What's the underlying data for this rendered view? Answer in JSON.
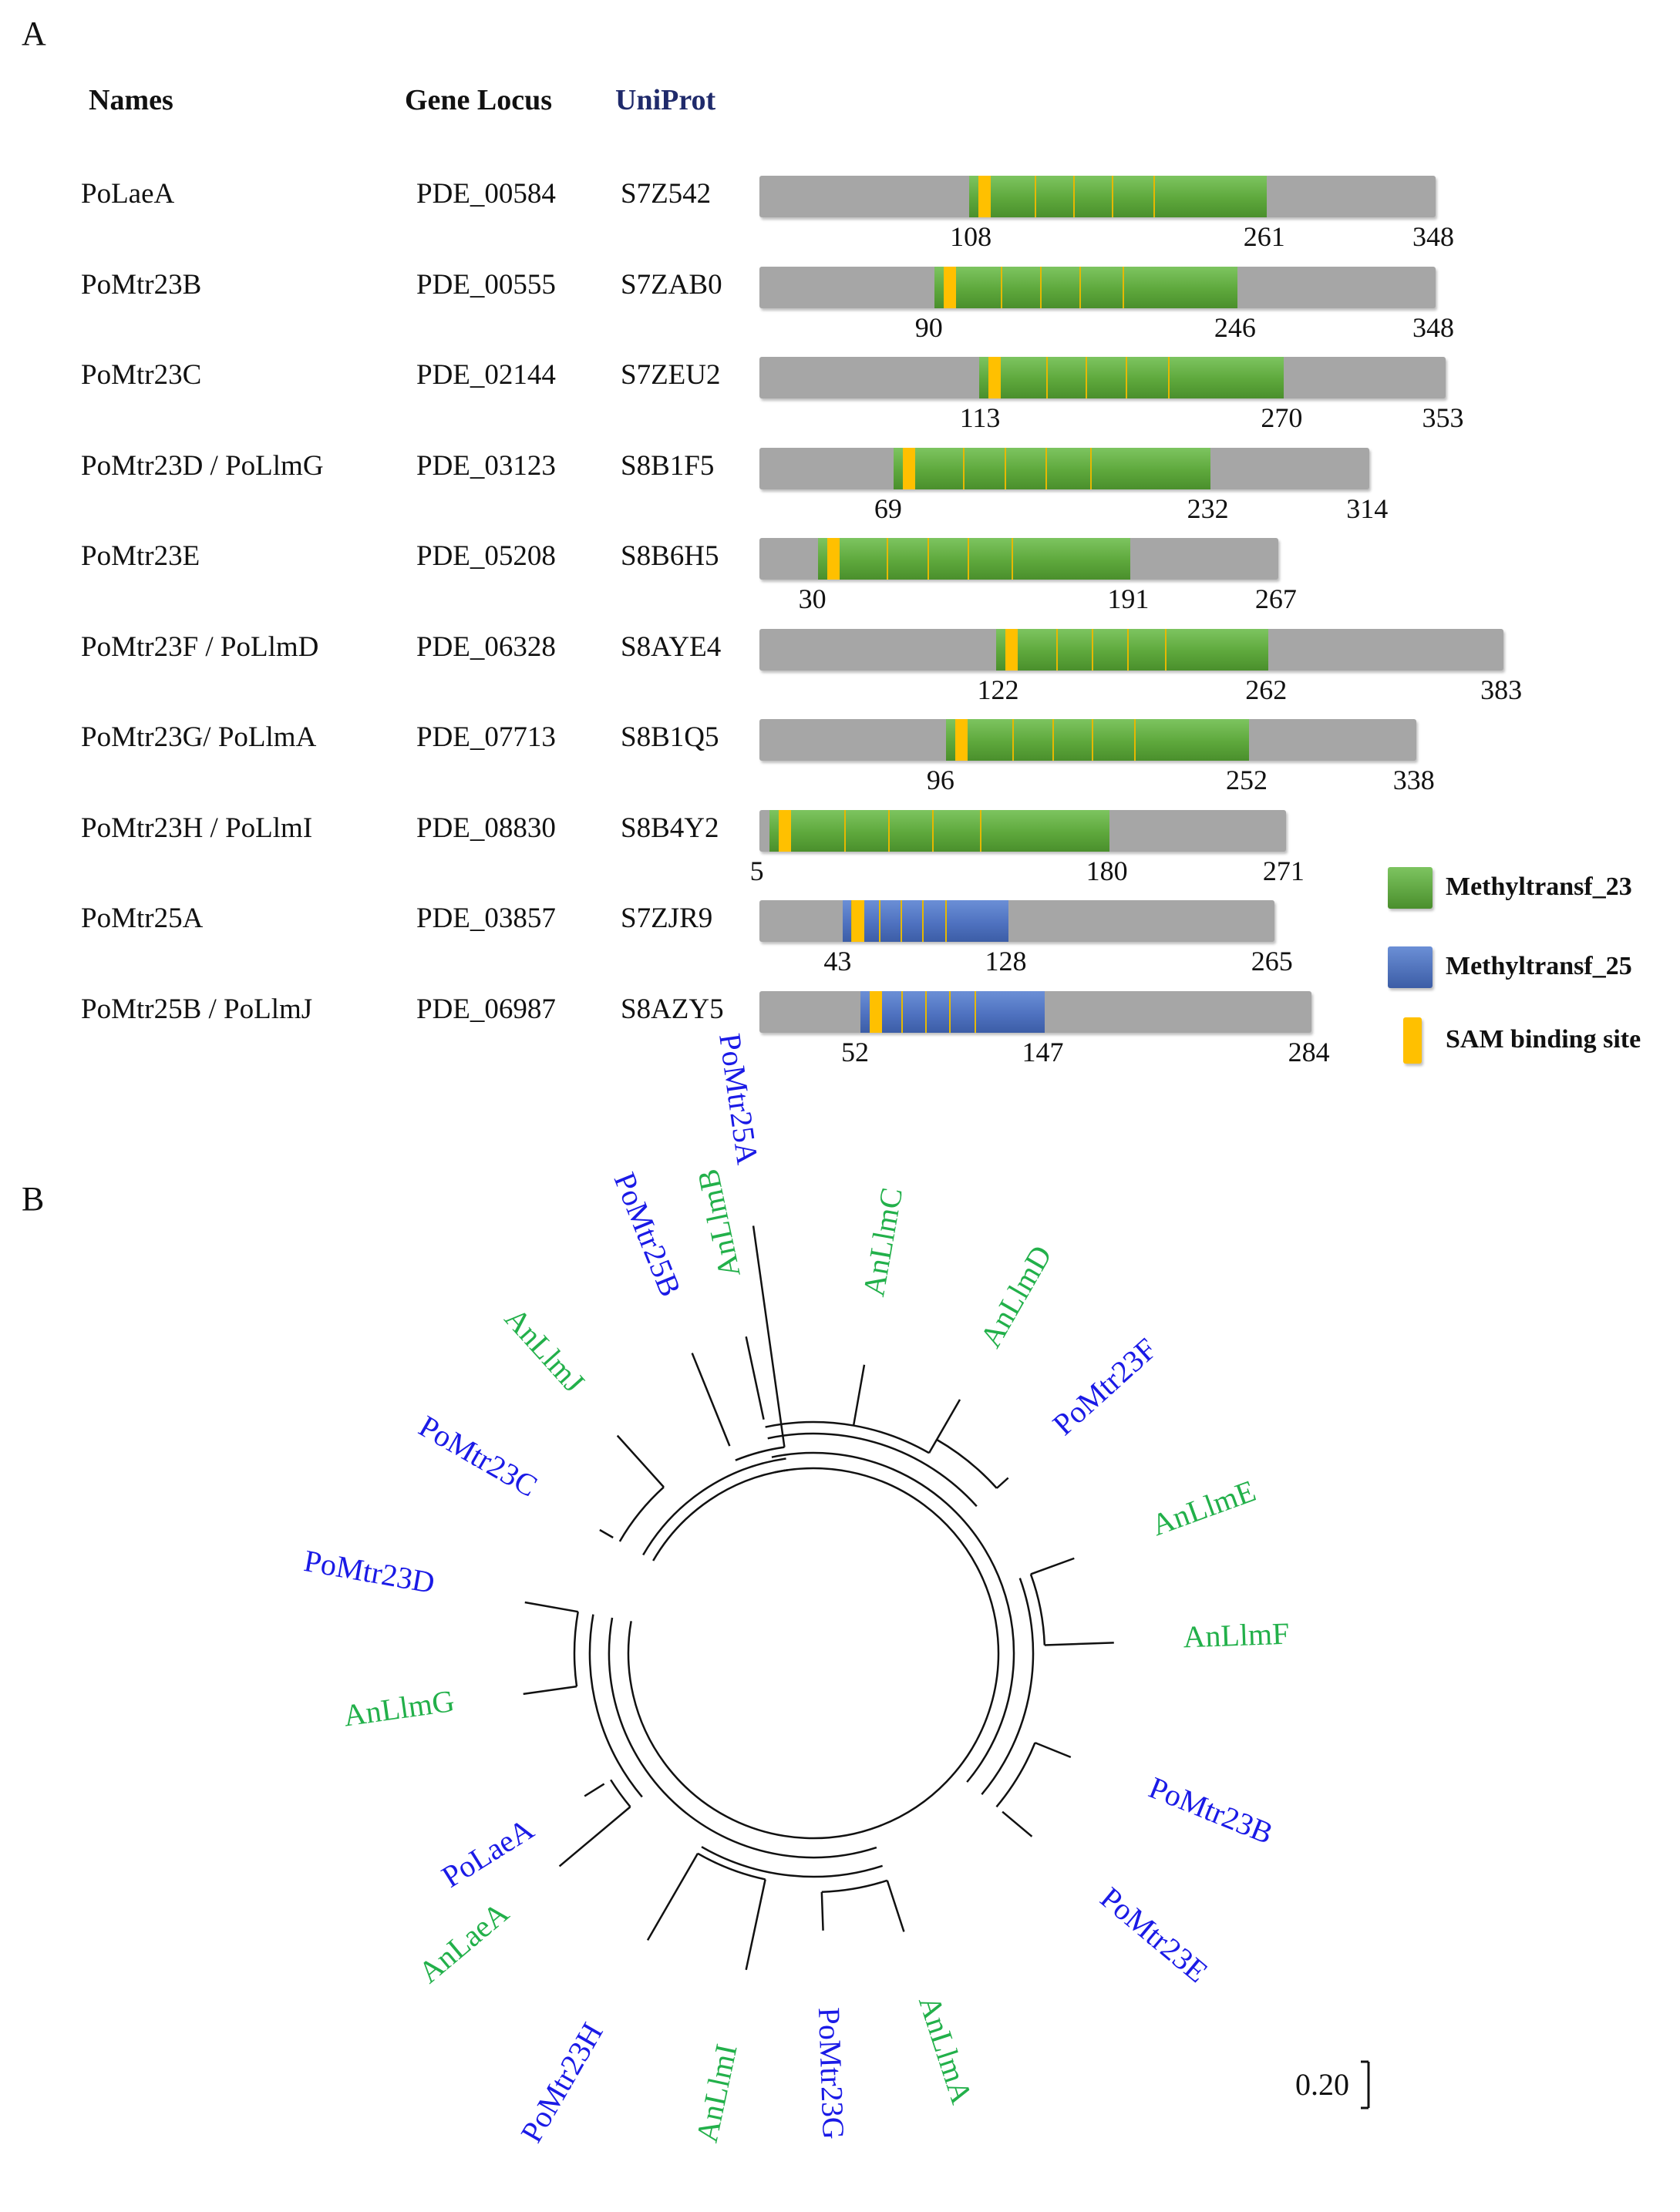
{
  "panel_a": {
    "letter": "A",
    "headers": {
      "names": "Names",
      "gene_locus": "Gene Locus",
      "uniprot": "UniProt"
    },
    "rows": [
      {
        "name": "PoLaeA",
        "locus": "PDE_00584",
        "uniprot": "S7Z542",
        "domain": "g",
        "start": 108,
        "end": 261,
        "length": 348
      },
      {
        "name": "PoMtr23B",
        "locus": "PDE_00555",
        "uniprot": "S7ZAB0",
        "domain": "g",
        "start": 90,
        "end": 246,
        "length": 348
      },
      {
        "name": "PoMtr23C",
        "locus": "PDE_02144",
        "uniprot": "S7ZEU2",
        "domain": "g",
        "start": 113,
        "end": 270,
        "length": 353
      },
      {
        "name": "PoMtr23D / PoLlmG",
        "locus": "PDE_03123",
        "uniprot": "S8B1F5",
        "domain": "g",
        "start": 69,
        "end": 232,
        "length": 314
      },
      {
        "name": "PoMtr23E",
        "locus": "PDE_05208",
        "uniprot": "S8B6H5",
        "domain": "g",
        "start": 30,
        "end": 191,
        "length": 267
      },
      {
        "name": "PoMtr23F / PoLlmD",
        "locus": "PDE_06328",
        "uniprot": "S8AYE4",
        "domain": "g",
        "start": 122,
        "end": 262,
        "length": 383
      },
      {
        "name": "PoMtr23G/ PoLlmA",
        "locus": "PDE_07713",
        "uniprot": "S8B1Q5",
        "domain": "g",
        "start": 96,
        "end": 252,
        "length": 338
      },
      {
        "name": "PoMtr23H / PoLlmI",
        "locus": "PDE_08830",
        "uniprot": "S8B4Y2",
        "domain": "g",
        "start": 5,
        "end": 180,
        "length": 271
      },
      {
        "name": "PoMtr25A",
        "locus": "PDE_03857",
        "uniprot": "S7ZJR9",
        "domain": "b",
        "start": 43,
        "end": 128,
        "length": 265
      },
      {
        "name": "PoMtr25B / PoLlmJ",
        "locus": "PDE_06987",
        "uniprot": "S8AZY5",
        "domain": "b",
        "start": 52,
        "end": 147,
        "length": 284
      }
    ],
    "legend": [
      {
        "label": "Methyltransf_23",
        "color": "#5ea83c"
      },
      {
        "label": "Methyltransf_25",
        "color": "#4f72c0"
      },
      {
        "label": "SAM binding site",
        "color": "#ffc000"
      }
    ]
  },
  "panel_b": {
    "letter": "B",
    "scale_label": "0.20",
    "colors": {
      "po": "#1a1ae6",
      "an": "#22b04a"
    },
    "leaves": [
      {
        "label": "AnLlmB",
        "group": "an"
      },
      {
        "label": "AnLlmC",
        "group": "an"
      },
      {
        "label": "AnLlmD",
        "group": "an"
      },
      {
        "label": "PoMtr23F",
        "group": "po"
      },
      {
        "label": "AnLlmE",
        "group": "an"
      },
      {
        "label": "AnLlmF",
        "group": "an"
      },
      {
        "label": "PoMtr23B",
        "group": "po"
      },
      {
        "label": "PoMtr23E",
        "group": "po"
      },
      {
        "label": "AnLlmA",
        "group": "an"
      },
      {
        "label": "PoMtr23G",
        "group": "po"
      },
      {
        "label": "AnLlmI",
        "group": "an"
      },
      {
        "label": "PoMtr23H",
        "group": "po"
      },
      {
        "label": "AnLaeA",
        "group": "an"
      },
      {
        "label": "PoLaeA",
        "group": "po"
      },
      {
        "label": "AnLlmG",
        "group": "an"
      },
      {
        "label": "PoMtr23D",
        "group": "po"
      },
      {
        "label": "PoMtr23C",
        "group": "po"
      },
      {
        "label": "AnLlmJ",
        "group": "an"
      },
      {
        "label": "PoMtr25B",
        "group": "po"
      },
      {
        "label": "PoMtr25A",
        "group": "po"
      }
    ]
  }
}
